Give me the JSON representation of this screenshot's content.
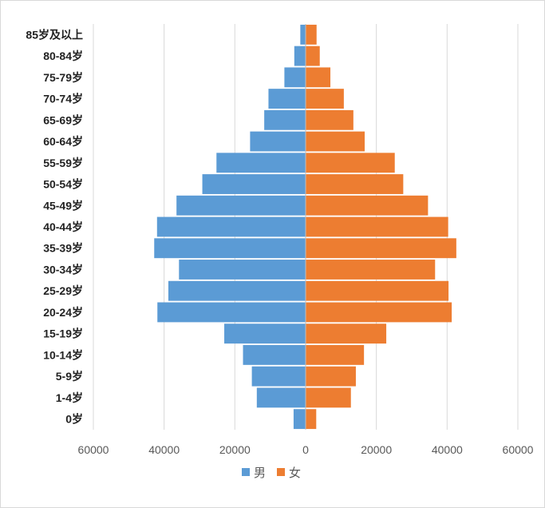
{
  "chart_data": {
    "type": "bar",
    "orientation": "horizontal",
    "layout": "population-pyramid",
    "categories": [
      "85岁及以上",
      "80-84岁",
      "75-79岁",
      "70-74岁",
      "65-69岁",
      "60-64岁",
      "55-59岁",
      "50-54岁",
      "45-49岁",
      "40-44岁",
      "35-39岁",
      "30-34岁",
      "25-29岁",
      "20-24岁",
      "15-19岁",
      "10-14岁",
      "5-9岁",
      "1-4岁",
      "0岁"
    ],
    "series": [
      {
        "name": "男",
        "color": "#5b9bd5",
        "side": "left",
        "values": [
          1500,
          3200,
          6000,
          10500,
          11700,
          15700,
          25200,
          29200,
          36500,
          42000,
          42800,
          35800,
          38800,
          41900,
          23000,
          17700,
          15200,
          13800,
          3400
        ]
      },
      {
        "name": "女",
        "color": "#ed7d31",
        "side": "right",
        "values": [
          3100,
          4000,
          7000,
          10800,
          13500,
          16700,
          25200,
          27600,
          34600,
          40300,
          42600,
          36600,
          40400,
          41300,
          22800,
          16500,
          14200,
          12800,
          3000
        ]
      }
    ],
    "xlim": [
      -60000,
      60000
    ],
    "x_ticks": [
      {
        "value": -60000,
        "label": "60000"
      },
      {
        "value": -40000,
        "label": "40000"
      },
      {
        "value": -20000,
        "label": "20000"
      },
      {
        "value": 0,
        "label": "0"
      },
      {
        "value": 20000,
        "label": "20000"
      },
      {
        "value": 40000,
        "label": "40000"
      },
      {
        "value": 60000,
        "label": "60000"
      }
    ],
    "grid": "vertical",
    "legend_position": "bottom",
    "title": "",
    "xlabel": "",
    "ylabel": ""
  }
}
